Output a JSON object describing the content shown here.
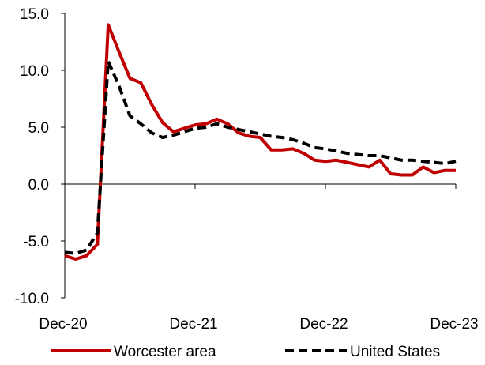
{
  "chart_data": {
    "type": "line",
    "title": "",
    "xlabel": "",
    "ylabel": "",
    "ylim": [
      -10,
      15
    ],
    "yticks": [
      "15.0",
      "10.0",
      "5.0",
      "0.0",
      "-5.0",
      "-10.0"
    ],
    "ytick_values": [
      15,
      10,
      5,
      0,
      -5,
      -10
    ],
    "xtick_labels": [
      "Dec-20",
      "Dec-21",
      "Dec-22",
      "Dec-23"
    ],
    "xtick_index": [
      0,
      12,
      24,
      36
    ],
    "x_start": "Dec-20",
    "x_end": "Dec-23",
    "grid": false,
    "legend_position": "bottom",
    "series": [
      {
        "name": "Worcester area",
        "color": "#c00000",
        "style": "solid",
        "values": [
          -6.3,
          -6.6,
          -6.3,
          -5.3,
          14.0,
          11.6,
          9.3,
          8.9,
          7.0,
          5.4,
          4.6,
          4.9,
          5.2,
          5.3,
          5.7,
          5.3,
          4.5,
          4.2,
          4.1,
          3.0,
          3.0,
          3.1,
          2.7,
          2.1,
          2.0,
          2.1,
          1.9,
          1.7,
          1.5,
          2.1,
          0.9,
          0.8,
          0.8,
          1.5,
          1.0,
          1.2,
          1.2
        ]
      },
      {
        "name": "United States",
        "color": "#000000",
        "style": "dashed",
        "values": [
          -6.0,
          -6.1,
          -5.8,
          -4.3,
          10.8,
          8.6,
          6.0,
          5.3,
          4.5,
          4.1,
          4.3,
          4.6,
          4.9,
          5.0,
          5.3,
          5.0,
          4.8,
          4.6,
          4.4,
          4.2,
          4.1,
          3.9,
          3.6,
          3.2,
          3.1,
          2.9,
          2.7,
          2.6,
          2.5,
          2.5,
          2.3,
          2.1,
          2.1,
          2.0,
          1.9,
          1.8,
          2.0
        ]
      }
    ]
  }
}
